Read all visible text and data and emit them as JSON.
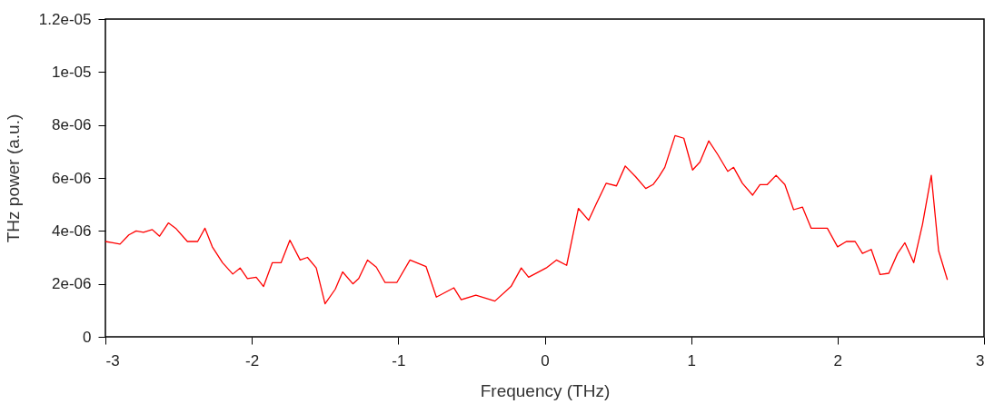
{
  "chart_data": {
    "type": "line",
    "xlabel": "Frequency (THz)",
    "ylabel": "THz power (a.u.)",
    "x": [
      -3.0,
      -2.95,
      -2.9,
      -2.84,
      -2.79,
      -2.74,
      -2.68,
      -2.63,
      -2.57,
      -2.52,
      -2.44,
      -2.37,
      -2.32,
      -2.27,
      -2.2,
      -2.13,
      -2.08,
      -2.03,
      -1.97,
      -1.92,
      -1.86,
      -1.8,
      -1.74,
      -1.67,
      -1.62,
      -1.56,
      -1.5,
      -1.43,
      -1.38,
      -1.31,
      -1.27,
      -1.21,
      -1.15,
      -1.09,
      -1.01,
      -0.92,
      -0.81,
      -0.74,
      -0.62,
      -0.57,
      -0.47,
      -0.34,
      -0.23,
      -0.16,
      -0.11,
      0.01,
      0.08,
      0.15,
      0.23,
      0.3,
      0.35,
      0.42,
      0.49,
      0.55,
      0.62,
      0.69,
      0.74,
      0.78,
      0.82,
      0.89,
      0.95,
      1.01,
      1.06,
      1.12,
      1.18,
      1.25,
      1.29,
      1.35,
      1.42,
      1.47,
      1.52,
      1.58,
      1.64,
      1.7,
      1.76,
      1.82,
      1.93,
      2.0,
      2.06,
      2.12,
      2.17,
      2.23,
      2.29,
      2.35,
      2.41,
      2.46,
      2.52,
      2.58,
      2.64,
      2.69,
      2.75
    ],
    "series": [
      {
        "color": "#ff0000",
        "values": [
          3.6e-06,
          3.55e-06,
          3.5e-06,
          3.85e-06,
          4e-06,
          3.95e-06,
          4.05e-06,
          3.8e-06,
          4.3e-06,
          4.1e-06,
          3.6e-06,
          3.6e-06,
          4.1e-06,
          3.4e-06,
          2.8e-06,
          2.37e-06,
          2.6e-06,
          2.2e-06,
          2.25e-06,
          1.9e-06,
          2.8e-06,
          2.8e-06,
          3.65e-06,
          2.9e-06,
          3e-06,
          2.6e-06,
          1.25e-06,
          1.8e-06,
          2.45e-06,
          2e-06,
          2.2e-06,
          2.9e-06,
          2.63e-06,
          2.05e-06,
          2.05e-06,
          2.9e-06,
          2.65e-06,
          1.5e-06,
          1.85e-06,
          1.4e-06,
          1.57e-06,
          1.35e-06,
          1.9e-06,
          2.6e-06,
          2.25e-06,
          2.6e-06,
          2.9e-06,
          2.7e-06,
          4.85e-06,
          4.4e-06,
          5e-06,
          5.8e-06,
          5.7e-06,
          6.45e-06,
          6.05e-06,
          5.6e-06,
          5.75e-06,
          6.05e-06,
          6.4e-06,
          7.6e-06,
          7.5e-06,
          6.3e-06,
          6.6e-06,
          7.4e-06,
          6.9e-06,
          6.25e-06,
          6.4e-06,
          5.8e-06,
          5.35e-06,
          5.75e-06,
          5.75e-06,
          6.1e-06,
          5.75e-06,
          4.8e-06,
          4.9e-06,
          4.1e-06,
          4.1e-06,
          3.4e-06,
          3.6e-06,
          3.6e-06,
          3.15e-06,
          3.3e-06,
          2.35e-06,
          2.4e-06,
          3.15e-06,
          3.55e-06,
          2.8e-06,
          4.25e-06,
          6.1e-06,
          3.25e-06,
          2.15e-06
        ]
      }
    ],
    "xlim": [
      -3,
      3
    ],
    "xticks": [
      -3,
      -2,
      -1,
      0,
      1,
      2,
      3
    ],
    "ylim": [
      0,
      1.2e-05
    ],
    "yticks": [
      0,
      {
        "value": 2e-06,
        "label": "2e-06"
      },
      {
        "value": 4e-06,
        "label": "4e-06"
      },
      {
        "value": 6e-06,
        "label": "6e-06"
      },
      {
        "value": 8e-06,
        "label": "8e-06"
      },
      {
        "value": 1e-05,
        "label": "1e-05"
      },
      {
        "value": 1.2e-05,
        "label": "1.2e-05"
      }
    ],
    "grid": false,
    "marker": "none",
    "line_style": "solid"
  }
}
